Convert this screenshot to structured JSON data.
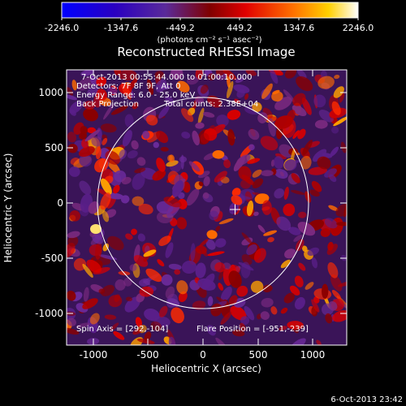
{
  "title": "Reconstructed RHESSI Image",
  "colorbar": {
    "ticks": [
      "-2246.0",
      "-1347.6",
      "-449.2",
      "449.2",
      "1347.6",
      "2246.0"
    ],
    "unit_label": "(photons cm⁻² s⁻¹ asec⁻²)"
  },
  "info": {
    "time_range": "7-Oct-2013 00:55:44.000 to 01:00:10.000",
    "detectors": "Detectors: 7F 8F 9F, Att 0",
    "energy": "Energy Range: 6.0 - 25.0 keV",
    "method": "Back Projection",
    "counts": "Total counts: 2.38E+04"
  },
  "footer": {
    "spin_axis": "Spin Axis = [292,-104]",
    "flare_position": "Flare Position = [-951,-239]"
  },
  "axes": {
    "xlabel": "Heliocentric X (arcsec)",
    "ylabel": "Heliocentric Y (arcsec)",
    "xticks": [
      "-1000",
      "-500",
      "0",
      "500",
      "1000"
    ],
    "yticks": [
      "1000",
      "500",
      "0",
      "-500",
      "-1000"
    ]
  },
  "timestamp": "6-Oct-2013 23:42",
  "chart_data": {
    "type": "heatmap",
    "title": "Reconstructed RHESSI Image",
    "xlabel": "Heliocentric X (arcsec)",
    "ylabel": "Heliocentric Y (arcsec)",
    "xlim": [
      -1270,
      1310
    ],
    "ylim": [
      -1270,
      1270
    ],
    "value_range": [
      -2246.0,
      2246.0
    ],
    "colorscale": [
      "#0000ff",
      "#2a00c0",
      "#5a2a9a",
      "#8a1020",
      "#e00000",
      "#ff7000",
      "#ffd000",
      "#ffffff"
    ],
    "solar_disk": {
      "center_x": 0,
      "center_y": 0,
      "radius": 960
    },
    "spin_axis_marker": {
      "x": 292,
      "y": -104
    },
    "flare_source": {
      "x": -951,
      "y": -239
    }
  }
}
